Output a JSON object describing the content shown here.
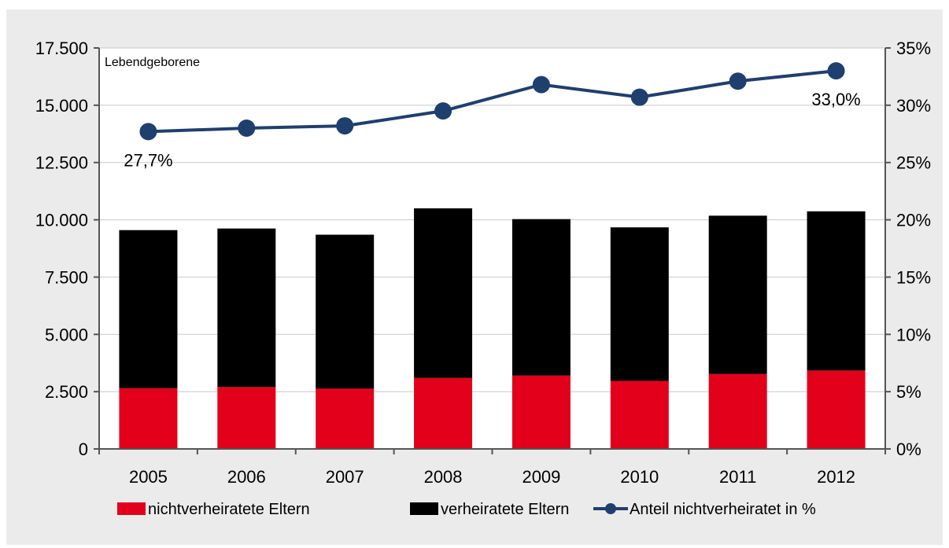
{
  "chart_data": {
    "type": "bar",
    "stacked": true,
    "categories": [
      "2005",
      "2006",
      "2007",
      "2008",
      "2009",
      "2010",
      "2011",
      "2012"
    ],
    "unit_label": "Lebendgeborene",
    "series": [
      {
        "name": "nichtverheiratete Eltern",
        "type": "bar",
        "axis": "left",
        "color": "#e2001a",
        "values": [
          2650,
          2700,
          2630,
          3100,
          3200,
          2970,
          3270,
          3420
        ]
      },
      {
        "name": "verheiratete Eltern",
        "type": "bar",
        "axis": "left",
        "color": "#000000",
        "values": [
          6900,
          6920,
          6720,
          7400,
          6830,
          6700,
          6910,
          6950
        ]
      },
      {
        "name": "Anteil nichtverheiratet in %",
        "type": "line",
        "axis": "right",
        "color": "#1f3f6e",
        "values": [
          27.7,
          28.0,
          28.2,
          29.5,
          31.8,
          30.7,
          32.1,
          33.0
        ]
      }
    ],
    "left_axis": {
      "min": 0,
      "max": 17500,
      "step": 2500,
      "ticks": [
        "0",
        "2.500",
        "5.000",
        "7.500",
        "10.000",
        "12.500",
        "15.000",
        "17.500"
      ]
    },
    "right_axis": {
      "min": 0,
      "max": 35,
      "step": 5,
      "ticks": [
        "0%",
        "5%",
        "10%",
        "15%",
        "20%",
        "25%",
        "30%",
        "35%"
      ]
    },
    "annotations": [
      {
        "category": "2005",
        "series": "Anteil nichtverheiratet in %",
        "text": "27,7%"
      },
      {
        "category": "2012",
        "series": "Anteil nichtverheiratet in %",
        "text": "33,0%"
      }
    ],
    "grid": true,
    "legend_position": "bottom"
  },
  "colors": {
    "outer_background": "#ebebeb",
    "plot_background": "#ffffff",
    "grid": "#c8c8c8",
    "axis": "#555555"
  }
}
